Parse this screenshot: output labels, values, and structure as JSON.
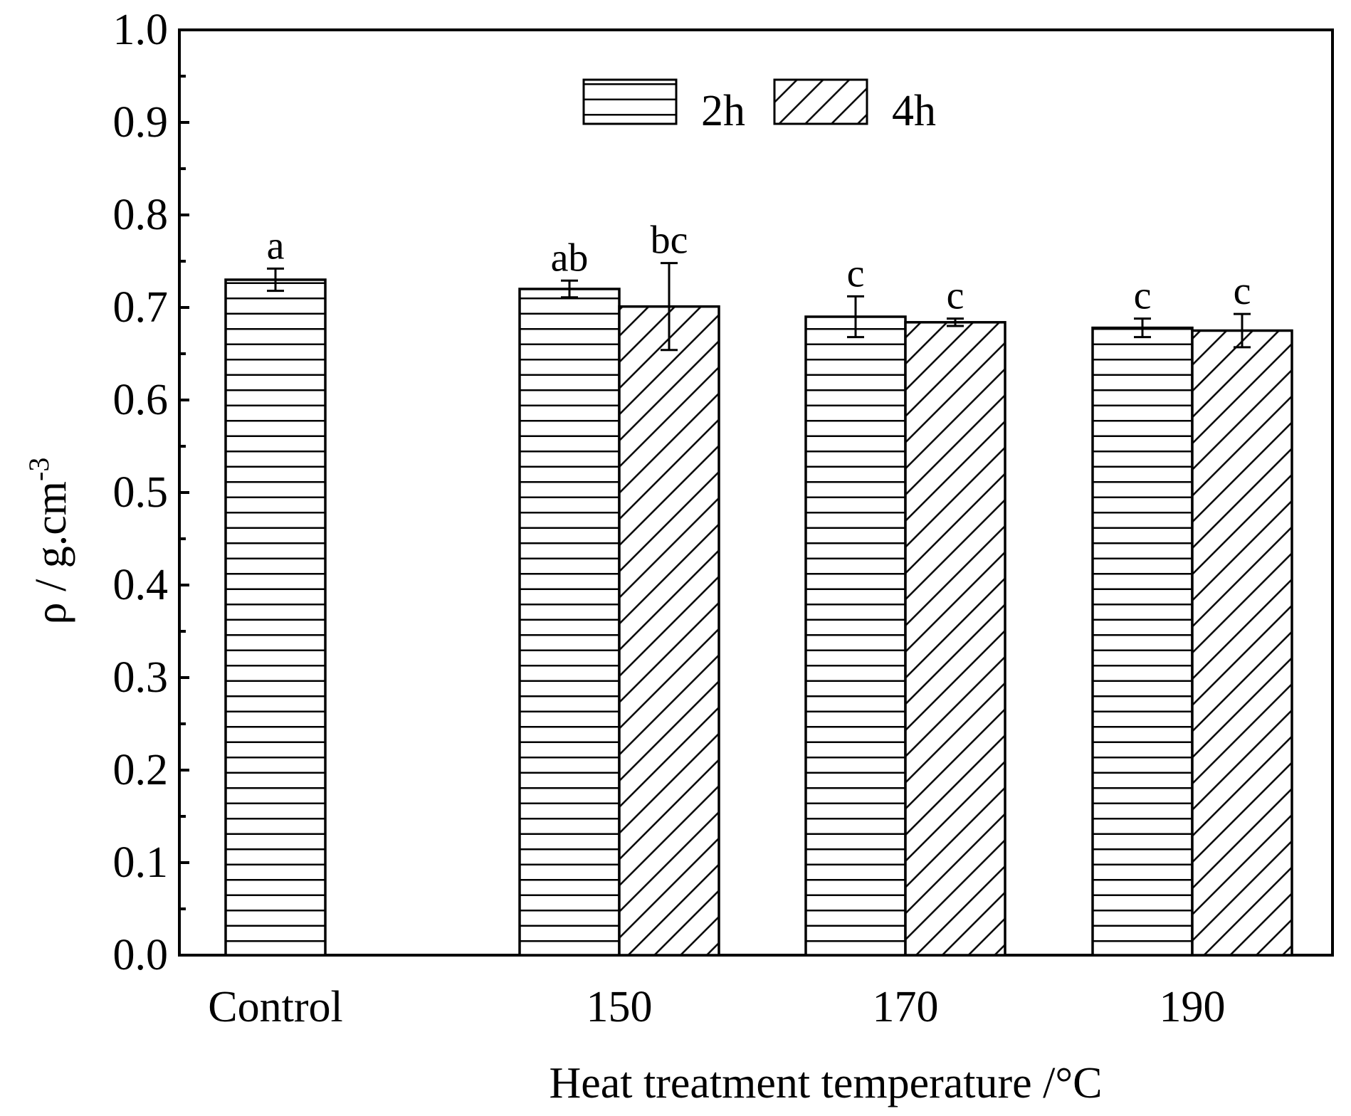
{
  "chart_data": {
    "type": "bar",
    "title": "",
    "xlabel": "Heat treatment temperature /°C",
    "ylabel_main": "ρ / g.cm",
    "ylabel_sup": "-3",
    "ylim": [
      0,
      1.0
    ],
    "ytick_step": 0.1,
    "ytick_labels": [
      "0.0",
      "0.1",
      "0.2",
      "0.3",
      "0.4",
      "0.5",
      "0.6",
      "0.7",
      "0.8",
      "0.9",
      "1.0"
    ],
    "categories": [
      "Control",
      "150",
      "170",
      "190"
    ],
    "legend_position": "top-center",
    "series": [
      {
        "name": "2h",
        "pattern": "horizontal",
        "values": [
          0.73,
          0.72,
          0.69,
          0.678
        ],
        "errors": [
          0.012,
          0.009,
          0.022,
          0.01
        ],
        "labels": [
          "a",
          "ab",
          "c",
          "c"
        ]
      },
      {
        "name": "4h",
        "pattern": "diagonal",
        "values": [
          null,
          0.701,
          0.684,
          0.675
        ],
        "errors": [
          null,
          0.047,
          0.004,
          0.018
        ],
        "labels": [
          null,
          "bc",
          "c",
          "c"
        ]
      }
    ],
    "colors": {
      "line": "#000000",
      "background": "#ffffff"
    }
  }
}
